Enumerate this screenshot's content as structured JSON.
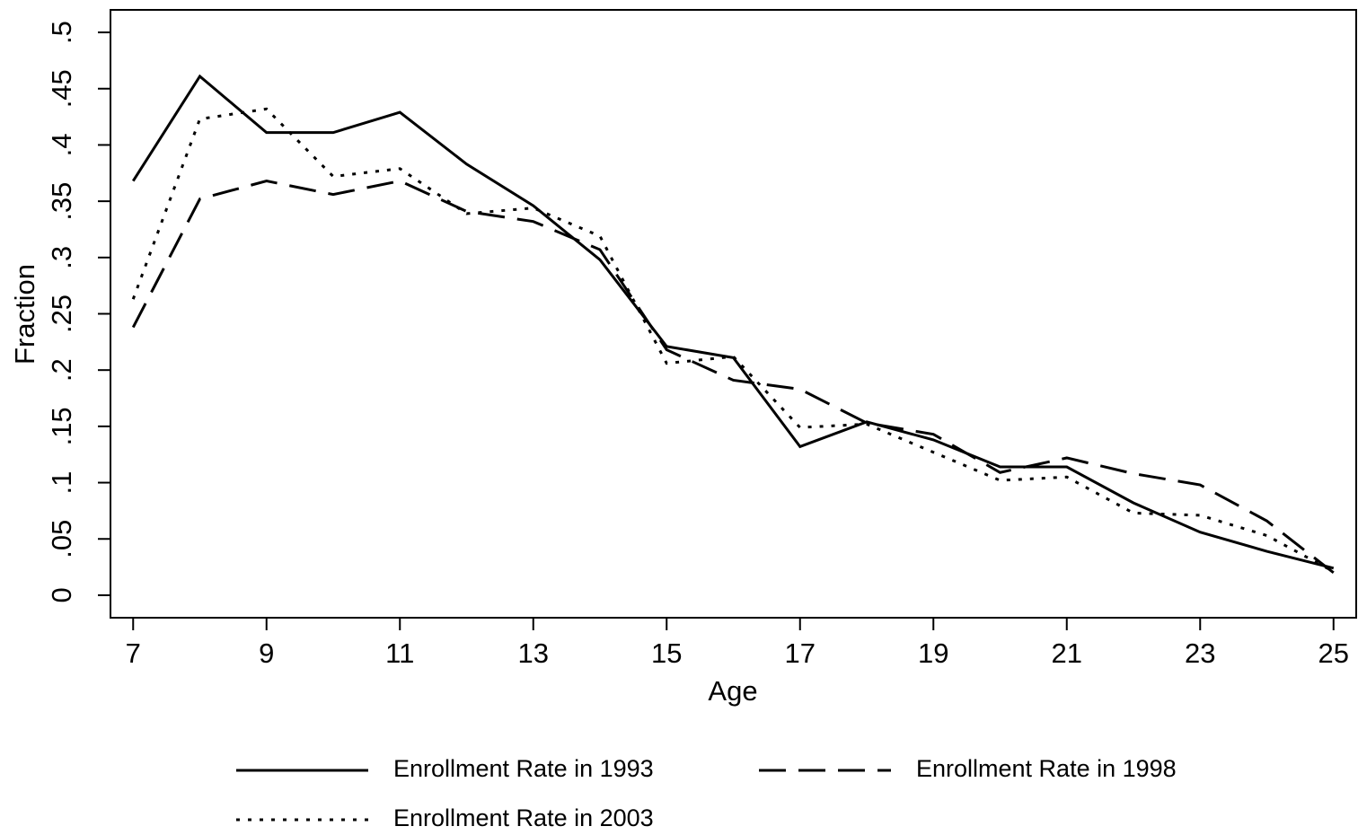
{
  "chart_data": {
    "type": "line",
    "x_label": "Age",
    "y_label": "Fraction",
    "x": [
      7,
      8,
      9,
      10,
      11,
      12,
      13,
      14,
      15,
      16,
      17,
      18,
      19,
      20,
      21,
      22,
      23,
      24,
      25
    ],
    "series": [
      {
        "name": "Enrollment Rate in 1993",
        "color": "#000000",
        "line_style": "solid",
        "values": [
          0.368,
          0.461,
          0.411,
          0.411,
          0.429,
          0.383,
          0.346,
          0.298,
          0.221,
          0.211,
          0.132,
          0.154,
          0.138,
          0.114,
          0.114,
          0.082,
          0.056,
          0.039,
          0.024
        ]
      },
      {
        "name": "Enrollment Rate in 1998",
        "color": "#000000",
        "line_style": "dashed",
        "values": [
          0.238,
          0.352,
          0.368,
          0.356,
          0.368,
          0.341,
          0.332,
          0.307,
          0.218,
          0.191,
          0.183,
          0.153,
          0.143,
          0.109,
          0.122,
          0.108,
          0.098,
          0.066,
          0.02
        ]
      },
      {
        "name": "Enrollment Rate in 2003",
        "color": "#000000",
        "line_style": "dotted",
        "values": [
          0.263,
          0.423,
          0.432,
          0.372,
          0.379,
          0.339,
          0.344,
          0.319,
          0.206,
          0.212,
          0.149,
          0.152,
          0.127,
          0.102,
          0.105,
          0.073,
          0.071,
          0.053,
          0.021
        ]
      }
    ],
    "xlim": [
      6.66,
      25.34
    ],
    "ylim": [
      -0.02,
      0.52
    ],
    "xticks": [
      7,
      9,
      11,
      13,
      15,
      17,
      19,
      21,
      23,
      25
    ],
    "yticks": [
      0,
      {
        "value": 0.05,
        "label": ".05"
      },
      {
        "value": 0.1,
        "label": ".1"
      },
      {
        "value": 0.15,
        "label": ".15"
      },
      {
        "value": 0.2,
        "label": ".2"
      },
      {
        "value": 0.25,
        "label": ".25"
      },
      {
        "value": 0.3,
        "label": ".3"
      },
      {
        "value": 0.35,
        "label": ".35"
      },
      {
        "value": 0.4,
        "label": ".4"
      },
      {
        "value": 0.45,
        "label": ".45"
      },
      {
        "value": 0.5,
        "label": ".5"
      }
    ],
    "grid": false,
    "legend_position": "bottom"
  }
}
